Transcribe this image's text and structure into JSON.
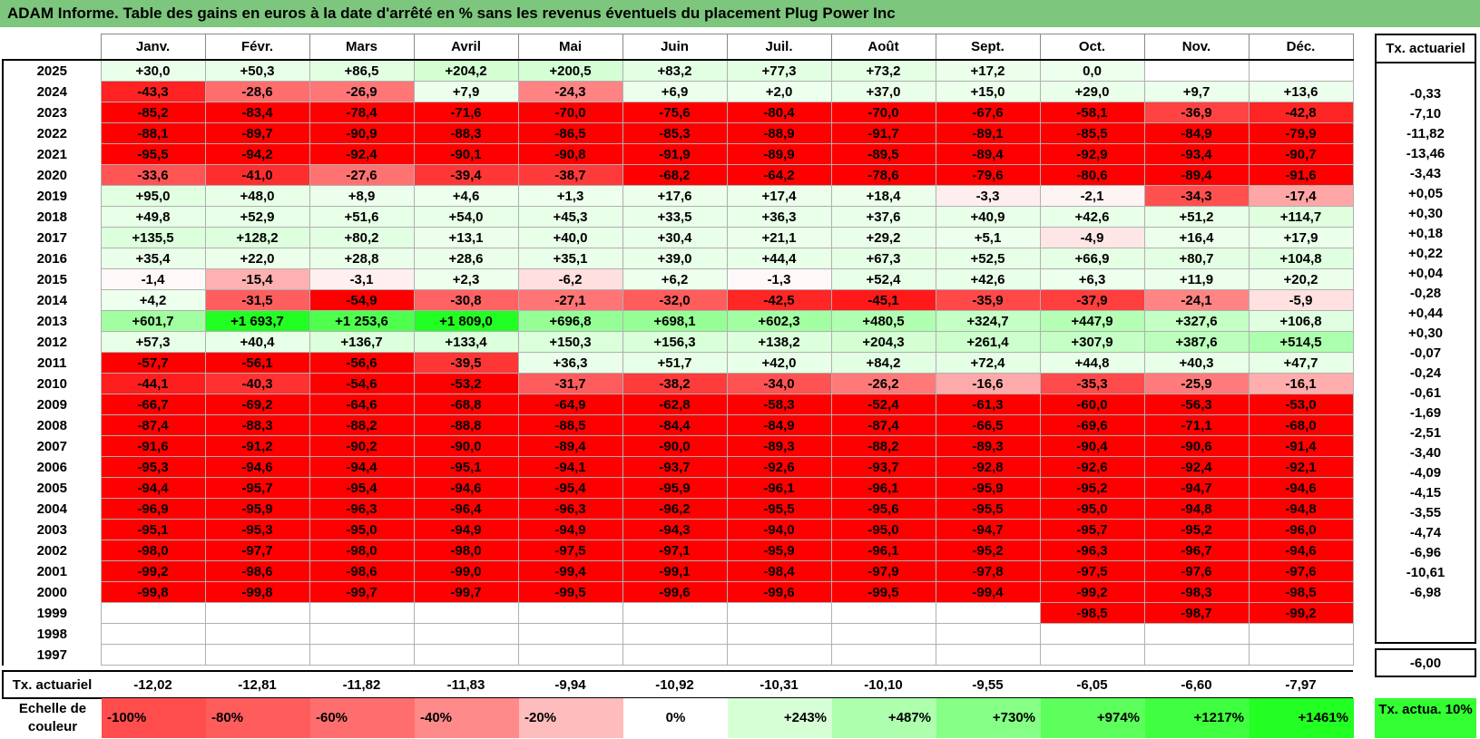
{
  "title": "ADAM Informe. Table des gains en euros à la date d'arrêté en % sans les revenus éventuels du placement Plug Power Inc",
  "months": [
    "Janv.",
    "Févr.",
    "Mars",
    "Avril",
    "Mai",
    "Juin",
    "Juil.",
    "Août",
    "Sept.",
    "Oct.",
    "Nov.",
    "Déc."
  ],
  "side_header": "Tx. actuariel",
  "footer_label": "Tx. actuariel",
  "chart_data": {
    "type": "table",
    "title": "ADAM Informe. Table des gains en euros à la date d'arrêté en % sans les revenus éventuels du placement Plug Power Inc",
    "columns": [
      "Janv.",
      "Févr.",
      "Mars",
      "Avril",
      "Mai",
      "Juin",
      "Juil.",
      "Août",
      "Sept.",
      "Oct.",
      "Nov.",
      "Déc."
    ],
    "rows": [
      {
        "year": "2025",
        "values": [
          "+30,0",
          "+50,3",
          "+86,5",
          "+204,2",
          "+200,5",
          "+83,2",
          "+77,3",
          "+73,2",
          "+17,2",
          "0,0",
          "",
          ""
        ],
        "tx": ""
      },
      {
        "year": "2024",
        "values": [
          "-43,3",
          "-28,6",
          "-26,9",
          "+7,9",
          "-24,3",
          "+6,9",
          "+2,0",
          "+37,0",
          "+15,0",
          "+29,0",
          "+9,7",
          "+13,6"
        ],
        "tx": "-0,33"
      },
      {
        "year": "2023",
        "values": [
          "-85,2",
          "-83,4",
          "-78,4",
          "-71,6",
          "-70,0",
          "-75,6",
          "-80,4",
          "-70,0",
          "-67,6",
          "-58,1",
          "-36,9",
          "-42,8"
        ],
        "tx": "-7,10"
      },
      {
        "year": "2022",
        "values": [
          "-88,1",
          "-89,7",
          "-90,9",
          "-88,3",
          "-86,5",
          "-85,3",
          "-88,9",
          "-91,7",
          "-89,1",
          "-85,5",
          "-84,9",
          "-79,9"
        ],
        "tx": "-11,82"
      },
      {
        "year": "2021",
        "values": [
          "-95,5",
          "-94,2",
          "-92,4",
          "-90,1",
          "-90,8",
          "-91,9",
          "-89,9",
          "-89,5",
          "-89,4",
          "-92,9",
          "-93,4",
          "-90,7"
        ],
        "tx": "-13,46"
      },
      {
        "year": "2020",
        "values": [
          "-33,6",
          "-41,0",
          "-27,6",
          "-39,4",
          "-38,7",
          "-68,2",
          "-64,2",
          "-78,6",
          "-79,6",
          "-80,6",
          "-89,4",
          "-91,6"
        ],
        "tx": "-3,43"
      },
      {
        "year": "2019",
        "values": [
          "+95,0",
          "+48,0",
          "+8,9",
          "+4,6",
          "+1,3",
          "+17,6",
          "+17,4",
          "+18,4",
          "-3,3",
          "-2,1",
          "-34,3",
          "-17,4"
        ],
        "tx": "+0,05"
      },
      {
        "year": "2018",
        "values": [
          "+49,8",
          "+52,9",
          "+51,6",
          "+54,0",
          "+45,3",
          "+33,5",
          "+36,3",
          "+37,6",
          "+40,9",
          "+42,6",
          "+51,2",
          "+114,7"
        ],
        "tx": "+0,30"
      },
      {
        "year": "2017",
        "values": [
          "+135,5",
          "+128,2",
          "+80,2",
          "+13,1",
          "+40,0",
          "+30,4",
          "+21,1",
          "+29,2",
          "+5,1",
          "-4,9",
          "+16,4",
          "+17,9"
        ],
        "tx": "+0,18"
      },
      {
        "year": "2016",
        "values": [
          "+35,4",
          "+22,0",
          "+28,8",
          "+28,6",
          "+35,1",
          "+39,0",
          "+44,4",
          "+67,3",
          "+52,5",
          "+66,9",
          "+80,7",
          "+104,8"
        ],
        "tx": "+0,22"
      },
      {
        "year": "2015",
        "values": [
          "-1,4",
          "-15,4",
          "-3,1",
          "+2,3",
          "-6,2",
          "+6,2",
          "-1,3",
          "+52,4",
          "+42,6",
          "+6,3",
          "+11,9",
          "+20,2"
        ],
        "tx": "+0,04"
      },
      {
        "year": "2014",
        "values": [
          "+4,2",
          "-31,5",
          "-54,9",
          "-30,8",
          "-27,1",
          "-32,0",
          "-42,5",
          "-45,1",
          "-35,9",
          "-37,9",
          "-24,1",
          "-5,9"
        ],
        "tx": "-0,28"
      },
      {
        "year": "2013",
        "values": [
          "+601,7",
          "+1 693,7",
          "+1 253,6",
          "+1 809,0",
          "+696,8",
          "+698,1",
          "+602,3",
          "+480,5",
          "+324,7",
          "+447,9",
          "+327,6",
          "+106,8"
        ],
        "tx": "+0,44"
      },
      {
        "year": "2012",
        "values": [
          "+57,3",
          "+40,4",
          "+136,7",
          "+133,4",
          "+150,3",
          "+156,3",
          "+138,2",
          "+204,3",
          "+261,4",
          "+307,9",
          "+387,6",
          "+514,5"
        ],
        "tx": "+0,30"
      },
      {
        "year": "2011",
        "values": [
          "-57,7",
          "-56,1",
          "-56,6",
          "-39,5",
          "+36,3",
          "+51,7",
          "+42,0",
          "+84,2",
          "+72,4",
          "+44,8",
          "+40,3",
          "+47,7"
        ],
        "tx": "-0,07"
      },
      {
        "year": "2010",
        "values": [
          "-44,1",
          "-40,3",
          "-54,6",
          "-53,2",
          "-31,7",
          "-38,2",
          "-34,0",
          "-26,2",
          "-16,6",
          "-35,3",
          "-25,9",
          "-16,1"
        ],
        "tx": "-0,24"
      },
      {
        "year": "2009",
        "values": [
          "-66,7",
          "-69,2",
          "-64,6",
          "-68,8",
          "-64,9",
          "-62,8",
          "-58,3",
          "-52,4",
          "-61,3",
          "-60,0",
          "-56,3",
          "-53,0"
        ],
        "tx": "-0,61"
      },
      {
        "year": "2008",
        "values": [
          "-87,4",
          "-88,3",
          "-88,2",
          "-88,8",
          "-88,5",
          "-84,4",
          "-84,9",
          "-87,4",
          "-66,5",
          "-69,6",
          "-71,1",
          "-68,0"
        ],
        "tx": "-1,69"
      },
      {
        "year": "2007",
        "values": [
          "-91,6",
          "-91,2",
          "-90,2",
          "-90,0",
          "-89,4",
          "-90,0",
          "-89,3",
          "-88,2",
          "-89,3",
          "-90,4",
          "-90,6",
          "-91,4"
        ],
        "tx": "-2,51"
      },
      {
        "year": "2006",
        "values": [
          "-95,3",
          "-94,6",
          "-94,4",
          "-95,1",
          "-94,1",
          "-93,7",
          "-92,6",
          "-93,7",
          "-92,8",
          "-92,6",
          "-92,4",
          "-92,1"
        ],
        "tx": "-3,40"
      },
      {
        "year": "2005",
        "values": [
          "-94,4",
          "-95,7",
          "-95,4",
          "-94,6",
          "-95,4",
          "-95,9",
          "-96,1",
          "-96,1",
          "-95,9",
          "-95,2",
          "-94,7",
          "-94,6"
        ],
        "tx": "-4,09"
      },
      {
        "year": "2004",
        "values": [
          "-96,9",
          "-95,9",
          "-96,3",
          "-96,4",
          "-96,3",
          "-96,2",
          "-95,5",
          "-95,6",
          "-95,5",
          "-95,0",
          "-94,8",
          "-94,8"
        ],
        "tx": "-4,15"
      },
      {
        "year": "2003",
        "values": [
          "-95,1",
          "-95,3",
          "-95,0",
          "-94,9",
          "-94,9",
          "-94,3",
          "-94,0",
          "-95,0",
          "-94,7",
          "-95,7",
          "-95,2",
          "-96,0"
        ],
        "tx": "-3,55"
      },
      {
        "year": "2002",
        "values": [
          "-98,0",
          "-97,7",
          "-98,0",
          "-98,0",
          "-97,5",
          "-97,1",
          "-95,9",
          "-96,1",
          "-95,2",
          "-96,3",
          "-96,7",
          "-94,6"
        ],
        "tx": "-4,74"
      },
      {
        "year": "2001",
        "values": [
          "-99,2",
          "-98,6",
          "-98,6",
          "-99,0",
          "-99,4",
          "-99,1",
          "-98,4",
          "-97,9",
          "-97,8",
          "-97,5",
          "-97,6",
          "-97,6"
        ],
        "tx": "-6,96"
      },
      {
        "year": "2000",
        "values": [
          "-99,8",
          "-99,8",
          "-99,7",
          "-99,7",
          "-99,5",
          "-99,6",
          "-99,6",
          "-99,5",
          "-99,4",
          "-99,2",
          "-98,3",
          "-98,5"
        ],
        "tx": "-10,61"
      },
      {
        "year": "1999",
        "values": [
          "",
          "",
          "",
          "",
          "",
          "",
          "",
          "",
          "",
          "-98,5",
          "-98,7",
          "-99,2"
        ],
        "tx": "-6,98"
      },
      {
        "year": "1998",
        "values": [
          "",
          "",
          "",
          "",
          "",
          "",
          "",
          "",
          "",
          "",
          "",
          ""
        ],
        "tx": ""
      },
      {
        "year": "1997",
        "values": [
          "",
          "",
          "",
          "",
          "",
          "",
          "",
          "",
          "",
          "",
          "",
          ""
        ],
        "tx": ""
      }
    ],
    "footer": [
      "-12,02",
      "-12,81",
      "-11,82",
      "-11,83",
      "-9,94",
      "-10,92",
      "-10,31",
      "-10,10",
      "-9,55",
      "-6,05",
      "-6,60",
      "-7,97"
    ],
    "footer_tx": "-6,00",
    "scale": {
      "label": "Echelle de couleur",
      "items": [
        {
          "text": "-100%",
          "color": "#ff4d4d",
          "align": "left"
        },
        {
          "text": "-80%",
          "color": "#ff5c5c",
          "align": "left"
        },
        {
          "text": "-60%",
          "color": "#ff6e6e",
          "align": "left"
        },
        {
          "text": "-40%",
          "color": "#ff8a8a",
          "align": "left"
        },
        {
          "text": "-20%",
          "color": "#ffbcbc",
          "align": "left"
        },
        {
          "text": "0%",
          "color": "#ffffff",
          "align": "center"
        },
        {
          "text": "+243%",
          "color": "#d6ffd6",
          "align": "right"
        },
        {
          "text": "+487%",
          "color": "#adffad",
          "align": "right"
        },
        {
          "text": "+730%",
          "color": "#85ff85",
          "align": "right"
        },
        {
          "text": "+974%",
          "color": "#5cff5c",
          "align": "right"
        },
        {
          "text": "+1217%",
          "color": "#40ff40",
          "align": "right"
        },
        {
          "text": "+1461%",
          "color": "#22ff22",
          "align": "right"
        }
      ],
      "actua_label": "Tx. actua. 10%"
    }
  }
}
